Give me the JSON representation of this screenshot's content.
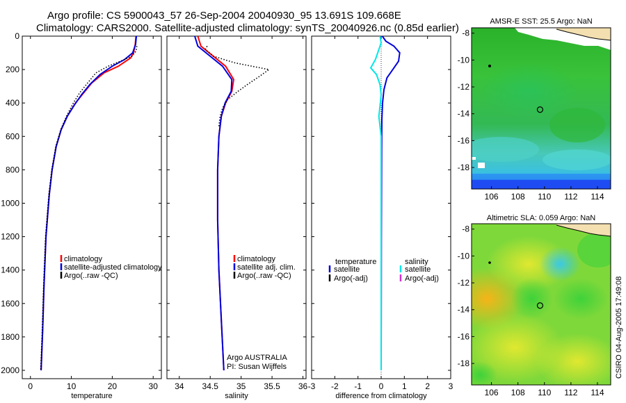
{
  "figure": {
    "title_line1": "Argo profile: CS 5900043_57 26-Sep-2004 20040930_95 13.691S 109.668E",
    "title_line2": "Climatology: CARS2000. Satellite-adjusted climatology: synTS_20040926.nc (0.85d earlier)",
    "credit_line1": "Argo AUSTRALIA",
    "credit_line2": "PI: Susan Wijffels",
    "timestamp": "CSIRO 04-Aug-2005 17:49:08"
  },
  "colors": {
    "climatology": "#ff0000",
    "satellite": "#0000dd",
    "argo": "#000000",
    "salinity_satellite": "#00e6e6",
    "salinity_argo_adj": "#cc33cc",
    "frame": "#000000"
  },
  "chart_data": [
    {
      "type": "line",
      "name": "temperature-profile",
      "xlabel": "temperature",
      "ylabel": "",
      "xlim": [
        -2,
        32
      ],
      "ylim": [
        2050,
        0
      ],
      "xticks": [
        0,
        10,
        20,
        30
      ],
      "yticks": [
        0,
        200,
        400,
        600,
        800,
        1000,
        1200,
        1400,
        1600,
        1800,
        2000
      ],
      "legend": [
        {
          "label": "climatology",
          "color": "#ff0000"
        },
        {
          "label": "satellite-adjusted climatology",
          "color": "#0000dd"
        },
        {
          "label": "Argo(..raw -QC)",
          "color": "#000000"
        }
      ],
      "series": [
        {
          "name": "climatology",
          "style": "solid",
          "color": "#ff0000",
          "x": [
            25.8,
            25.6,
            25.2,
            24.5,
            21.5,
            18.0,
            15.0,
            13.0,
            11.0,
            9.0,
            7.5,
            6.3,
            5.3,
            4.6,
            3.8,
            3.3,
            3.0,
            2.6
          ],
          "y": [
            0,
            50,
            100,
            130,
            180,
            220,
            280,
            340,
            400,
            480,
            560,
            660,
            800,
            950,
            1200,
            1500,
            1750,
            2000
          ]
        },
        {
          "name": "satellite-adjusted climatology",
          "style": "solid",
          "color": "#0000dd",
          "x": [
            25.9,
            25.7,
            25.0,
            23.0,
            20.0,
            17.0,
            14.5,
            12.5,
            10.8,
            9.0,
            7.5,
            6.3,
            5.3,
            4.6,
            3.8,
            3.3,
            3.0,
            2.6
          ],
          "y": [
            0,
            50,
            100,
            140,
            180,
            230,
            290,
            350,
            410,
            480,
            560,
            660,
            800,
            950,
            1200,
            1500,
            1750,
            2000
          ]
        },
        {
          "name": "Argo(..raw -QC)",
          "style": "dotted",
          "color": "#000000",
          "x": [
            26.0,
            25.8,
            24.8,
            22.0,
            19.0,
            16.0,
            14.0,
            12.0,
            10.5,
            8.8,
            7.4,
            6.2,
            5.2,
            4.5,
            3.7,
            3.2,
            2.9,
            2.5
          ],
          "y": [
            60,
            90,
            120,
            150,
            180,
            220,
            280,
            340,
            400,
            480,
            560,
            660,
            800,
            950,
            1200,
            1500,
            1750,
            2000
          ]
        }
      ]
    },
    {
      "type": "line",
      "name": "salinity-profile",
      "xlabel": "salinity",
      "ylabel": "",
      "xlim": [
        33.8,
        36.05
      ],
      "ylim": [
        2050,
        0
      ],
      "xticks": [
        34,
        34.5,
        35,
        35.5,
        36
      ],
      "yticks": [
        0,
        200,
        400,
        600,
        800,
        1000,
        1200,
        1400,
        1600,
        1800,
        2000
      ],
      "legend": [
        {
          "label": "climatology",
          "color": "#ff0000"
        },
        {
          "label": "satellite adj. clim.",
          "color": "#0000dd"
        },
        {
          "label": "Argo(..raw -QC)",
          "color": "#000000"
        }
      ],
      "series": [
        {
          "name": "climatology",
          "style": "solid",
          "color": "#ff0000",
          "x": [
            34.3,
            34.35,
            34.55,
            34.75,
            34.88,
            34.85,
            34.75,
            34.68,
            34.64,
            34.62,
            34.62,
            34.64,
            34.68,
            34.72
          ],
          "y": [
            0,
            60,
            120,
            180,
            260,
            330,
            400,
            480,
            600,
            800,
            1100,
            1400,
            1700,
            2000
          ]
        },
        {
          "name": "satellite adj. clim.",
          "style": "solid",
          "color": "#0000dd",
          "x": [
            34.25,
            34.3,
            34.5,
            34.7,
            34.85,
            34.84,
            34.74,
            34.68,
            34.64,
            34.62,
            34.62,
            34.64,
            34.68,
            34.72
          ],
          "y": [
            0,
            60,
            120,
            180,
            260,
            330,
            400,
            480,
            600,
            800,
            1100,
            1400,
            1700,
            2000
          ]
        },
        {
          "name": "Argo(..raw -QC)",
          "style": "dotted",
          "color": "#000000",
          "x": [
            34.45,
            34.42,
            34.55,
            34.9,
            35.45,
            35.3,
            35.1,
            34.95,
            34.78,
            34.7,
            34.66,
            34.64
          ],
          "y": [
            60,
            80,
            120,
            160,
            200,
            240,
            290,
            330,
            380,
            430,
            480,
            540
          ]
        }
      ]
    },
    {
      "type": "line",
      "name": "difference-profile",
      "xlabel": "difference from climatology",
      "ylabel": "",
      "xlim": [
        -3,
        3
      ],
      "ylim": [
        2050,
        0
      ],
      "xticks": [
        -3,
        -2,
        -1,
        0,
        1,
        2,
        3
      ],
      "yticks": [
        0,
        200,
        400,
        600,
        800,
        1000,
        1200,
        1400,
        1600,
        1800,
        2000
      ],
      "legend_temperature_header": "temperature",
      "legend_salinity_header": "salinity",
      "legend": [
        {
          "label": "satellite",
          "color": "#0000dd",
          "group": "temperature"
        },
        {
          "label": "Argo(-adj)",
          "color": "#000000",
          "group": "temperature"
        },
        {
          "label": "satellite",
          "color": "#00e6e6",
          "group": "salinity"
        },
        {
          "label": "Argo(-adj)",
          "color": "#cc33cc",
          "group": "salinity"
        }
      ],
      "series": [
        {
          "name": "temperature satellite",
          "style": "solid",
          "color": "#0000dd",
          "x": [
            0.05,
            0.2,
            0.55,
            0.8,
            0.75,
            0.5,
            0.25,
            0.12,
            0.06,
            0.03,
            0.02,
            0.01,
            0.0
          ],
          "y": [
            0,
            30,
            60,
            100,
            150,
            200,
            250,
            320,
            400,
            500,
            700,
            1200,
            2000
          ]
        },
        {
          "name": "salinity satellite",
          "style": "solid",
          "color": "#00e6e6",
          "x": [
            -0.05,
            0.0,
            -0.1,
            -0.25,
            -0.45,
            -0.2,
            -0.05,
            0.0,
            -0.05,
            -0.1,
            0.0,
            0.0,
            0.0
          ],
          "y": [
            0,
            40,
            80,
            140,
            190,
            230,
            290,
            350,
            420,
            480,
            600,
            1200,
            2000
          ]
        }
      ]
    },
    {
      "type": "heatmap",
      "name": "sst-map",
      "title": "AMSR-E SST: 25.5 Argo: NaN",
      "xlim": [
        104.5,
        115
      ],
      "ylim": [
        -19.6,
        -7.6
      ],
      "xticks": [
        106,
        108,
        110,
        112,
        114
      ],
      "yticks": [
        -8,
        -10,
        -12,
        -14,
        -16,
        -18
      ],
      "ytick_labels": [
        "-8",
        "-10",
        "-12",
        "-14",
        "-16",
        "-18"
      ],
      "marker": {
        "lon": 109.668,
        "lat": -13.691
      }
    },
    {
      "type": "heatmap",
      "name": "sla-map",
      "title": "Altimetric SLA: 0.059 Argo: NaN",
      "xlim": [
        104.5,
        115
      ],
      "ylim": [
        -19.6,
        -7.6
      ],
      "xticks": [
        106,
        108,
        110,
        112,
        114
      ],
      "yticks": [
        -8,
        -10,
        -12,
        -14,
        -16,
        -18
      ],
      "ytick_labels": [
        "-8",
        "-10",
        "-12",
        "-14",
        "-16",
        "-18"
      ],
      "marker": {
        "lon": 109.668,
        "lat": -13.691
      }
    }
  ]
}
